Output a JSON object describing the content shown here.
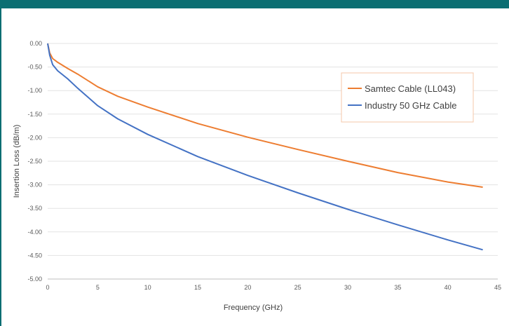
{
  "chart_data": {
    "type": "line",
    "title": "",
    "xlabel": "Frequency (GHz)",
    "ylabel": "Insertion Loss (dB/m)",
    "xlim": [
      0,
      45
    ],
    "ylim": [
      -5,
      0
    ],
    "x_ticks": [
      0,
      5,
      10,
      15,
      20,
      25,
      30,
      35,
      40,
      45
    ],
    "x_tick_labels": [
      "0",
      "5",
      "10",
      "15",
      "20",
      "25",
      "30",
      "35",
      "40",
      "45"
    ],
    "y_ticks": [
      0,
      -0.5,
      -1,
      -1.5,
      -2,
      -2.5,
      -3,
      -3.5,
      -4,
      -4.5,
      -5
    ],
    "y_tick_labels": [
      "0.00",
      "-0.50",
      "-1.00",
      "-1.50",
      "-2.00",
      "-2.50",
      "-3.00",
      "-3.50",
      "-4.00",
      "-4.50",
      "-5.00"
    ],
    "grid": "horizontal",
    "legend_position": "top-right",
    "series": [
      {
        "name": "Samtec Cable (LL043)",
        "color": "#ed7d31",
        "x": [
          0,
          0.2,
          0.5,
          1,
          2,
          3,
          5,
          7,
          10,
          15,
          20,
          25,
          30,
          35,
          40,
          43.5
        ],
        "y": [
          0,
          -0.2,
          -0.32,
          -0.4,
          -0.53,
          -0.65,
          -0.92,
          -1.12,
          -1.35,
          -1.7,
          -1.99,
          -2.25,
          -2.5,
          -2.74,
          -2.94,
          -3.05
        ]
      },
      {
        "name": "Industry 50 GHz Cable",
        "color": "#4472c4",
        "x": [
          0,
          0.2,
          0.5,
          1,
          2,
          3,
          5,
          7,
          10,
          15,
          20,
          25,
          30,
          35,
          40,
          43.5
        ],
        "y": [
          0,
          -0.25,
          -0.45,
          -0.58,
          -0.75,
          -0.95,
          -1.32,
          -1.6,
          -1.93,
          -2.4,
          -2.8,
          -3.17,
          -3.52,
          -3.85,
          -4.17,
          -4.38
        ]
      }
    ]
  }
}
